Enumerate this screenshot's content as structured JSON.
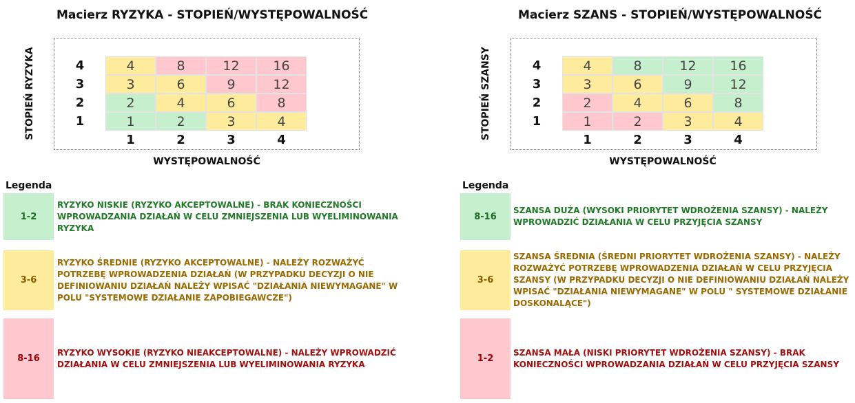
{
  "risk": {
    "title": "Macierz RYZYKA - STOPIEŃ/WYSTĘPOWALNOŚĆ",
    "y_label": "STOPIEŃ RYZYKA",
    "x_label": "WYSTĘPOWALNOŚĆ",
    "row_labels": [
      "4",
      "3",
      "2",
      "1"
    ],
    "col_labels": [
      "1",
      "2",
      "3",
      "4"
    ],
    "rows": [
      [
        "4",
        "8",
        "12",
        "16"
      ],
      [
        "3",
        "6",
        "9",
        "12"
      ],
      [
        "2",
        "4",
        "6",
        "8"
      ],
      [
        "1",
        "2",
        "3",
        "4"
      ]
    ],
    "colors": [
      [
        "yellow",
        "red",
        "red",
        "red"
      ],
      [
        "yellow",
        "yellow",
        "red",
        "red"
      ],
      [
        "green",
        "yellow",
        "yellow",
        "red"
      ],
      [
        "green",
        "green",
        "yellow",
        "yellow"
      ]
    ],
    "legend_title": "Legenda",
    "legend": [
      {
        "range": "1-2",
        "text": "RYZYKO NISKIE (RYZYKO AKCEPTOWALNE) - BRAK KONIECZNOŚCI WPROWADZANIA DZIAŁAŃ W CELU ZMNIEJSZENIA LUB WYELIMINOWANIA RYZYKA"
      },
      {
        "range": "3-6",
        "text": "RYZYKO ŚREDNIE (RYZYKO AKCEPTOWALNE) - NALEŻY ROZWAŻYĆ POTRZEBĘ WPROWADZENIA DZIAŁAŃ (W PRZYPADKU DECYZJI O NIE DEFINIOWANIU DZIAŁAŃ NALEŻY WPISAĆ \"DZIAŁANIA NIEWYMAGANE\" W POLU \"SYSTEMOWE DZIAŁANIE ZAPOBIEGAWCZE\")"
      },
      {
        "range": "8-16",
        "text": "RYZYKO WYSOKIE (RYZYKO NIEAKCEPTOWALNE) - NALEŻY WPROWADZIĆ DZIAŁANIA W CELU ZMNIEJSZENIA LUB WYELIMINOWANIA RYZYKA"
      }
    ]
  },
  "chance": {
    "title": "Macierz SZANS - STOPIEŃ/WYSTĘPOWALNOŚĆ",
    "y_label": "STOPIEŃ SZANSY",
    "x_label": "WYSTĘPOWALNOŚĆ",
    "row_labels": [
      "4",
      "3",
      "2",
      "1"
    ],
    "col_labels": [
      "1",
      "2",
      "3",
      "4"
    ],
    "rows": [
      [
        "4",
        "8",
        "12",
        "16"
      ],
      [
        "3",
        "6",
        "9",
        "12"
      ],
      [
        "2",
        "4",
        "6",
        "8"
      ],
      [
        "1",
        "2",
        "3",
        "4"
      ]
    ],
    "colors": [
      [
        "yellow",
        "green",
        "green",
        "green"
      ],
      [
        "yellow",
        "yellow",
        "green",
        "green"
      ],
      [
        "red",
        "yellow",
        "yellow",
        "green"
      ],
      [
        "red",
        "red",
        "yellow",
        "yellow"
      ]
    ],
    "legend_title": "Legenda",
    "legend": [
      {
        "range": "8-16",
        "text": "SZANSA DUŻA (WYSOKI PRIORYTET WDROŻENIA SZANSY) - NALEŻY WPROWADZIĆ DZIAŁANIA W CELU PRZYJĘCIA SZANSY"
      },
      {
        "range": "3-6",
        "text": "SZANSA ŚREDNIA (ŚREDNI PRIORYTET WDROŻENIA SZANSY) - NALEŻY ROZWAŻYĆ POTRZEBĘ WPROWADZENIA DZIAŁAŃ W CELU PRZYJĘCIA SZANSY (W PRZYPADKU DECYZJI O NIE DEFINIOWANIU DZIAŁAŃ NALEŻY WPISAĆ \"DZIAŁANIA NIEWYMAGANE\" W POLU \" SYSTEMOWE DZIAŁANIE DOSKONALĄCE\")"
      },
      {
        "range": "1-2",
        "text": "SZANSA MAŁA (NISKI PRIORYTET WDROŻENIA SZANSY) - BRAK KONIECZNOŚCI WPROWADZANIA DZIAŁAŃ W CELU PRZYJĘCIA SZANSY"
      }
    ]
  }
}
